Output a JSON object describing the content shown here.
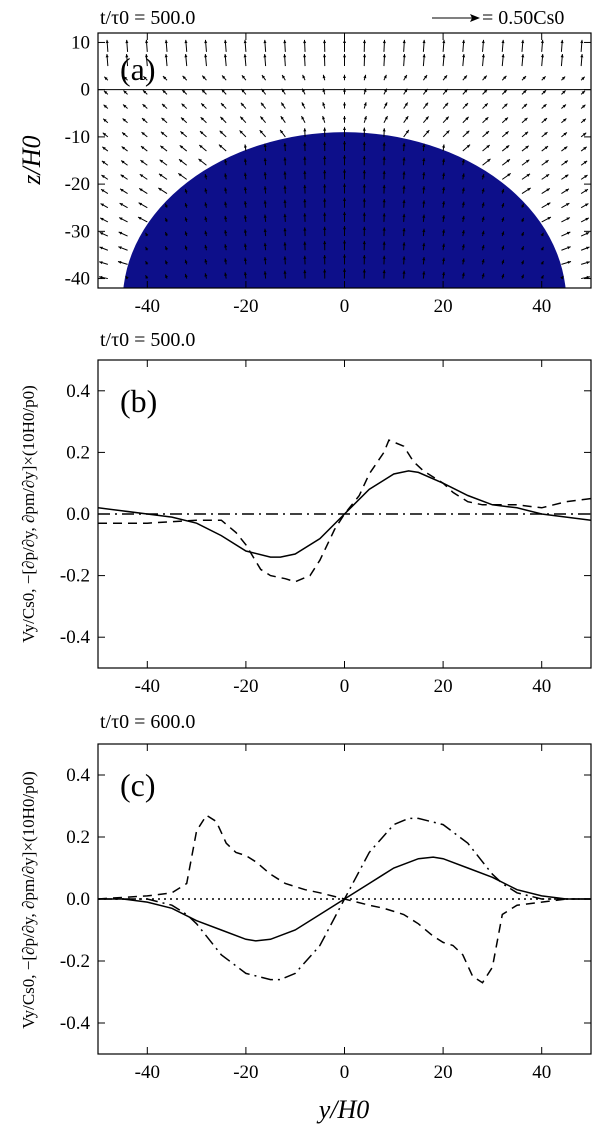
{
  "figure": {
    "xaxis_label": "y/H0"
  },
  "chart_data": [
    {
      "id": "a",
      "type": "heatmap",
      "panel_label": "(a)",
      "title": "t/τ0 = 500.0",
      "legend": "= 0.50Cs0",
      "ylabel": "z/H0",
      "xlim": [
        -50,
        50
      ],
      "ylim": [
        -42,
        12
      ],
      "xticks": [
        -40,
        -20,
        0,
        20,
        40
      ],
      "yticks": [
        -40,
        -30,
        -20,
        -10,
        0,
        10
      ],
      "reference_line_z": 0,
      "bubble": {
        "center_y": 0,
        "center_z": -45,
        "radius_y": 45,
        "radius_z": 36
      },
      "colors": {
        "interior": "#f2301c",
        "edge_orange": "#f5a020",
        "band": [
          "#39c14b",
          "#1ea0d8",
          "#2236c8",
          "#0d0f8a"
        ]
      }
    },
    {
      "id": "b",
      "type": "line",
      "panel_label": "(b)",
      "title": "t/τ0 = 500.0",
      "ylabel": "Vy/Cs0, −[∂p/∂y, ∂pm/∂y]×(10H0/p0)",
      "xlim": [
        -50,
        50
      ],
      "ylim": [
        -0.5,
        0.5
      ],
      "xticks": [
        -40,
        -20,
        0,
        20,
        40
      ],
      "yticks": [
        -0.4,
        -0.2,
        0.0,
        0.2,
        0.4
      ],
      "series": [
        {
          "name": "Vy/Cs0",
          "style": "solid",
          "x": [
            -50,
            -45,
            -40,
            -35,
            -30,
            -25,
            -20,
            -15,
            -13,
            -10,
            -5,
            0,
            5,
            10,
            13,
            15,
            20,
            25,
            30,
            35,
            40,
            45,
            50
          ],
          "y": [
            0.02,
            0.01,
            0.0,
            -0.01,
            -0.03,
            -0.07,
            -0.12,
            -0.14,
            -0.14,
            -0.13,
            -0.08,
            0.0,
            0.08,
            0.13,
            0.14,
            0.135,
            0.1,
            0.06,
            0.03,
            0.02,
            0.0,
            -0.01,
            -0.02
          ]
        },
        {
          "name": "-dp/dy",
          "style": "dashed",
          "x": [
            -50,
            -45,
            -40,
            -35,
            -30,
            -27,
            -25,
            -22,
            -20,
            -17,
            -15,
            -12,
            -10,
            -7,
            -5,
            -2,
            0,
            3,
            5,
            8,
            9,
            12,
            14,
            16,
            18,
            20,
            22,
            25,
            28,
            30,
            35,
            40,
            45,
            50
          ],
          "y": [
            -0.03,
            -0.03,
            -0.03,
            -0.025,
            -0.02,
            -0.02,
            -0.02,
            -0.06,
            -0.1,
            -0.18,
            -0.2,
            -0.21,
            -0.22,
            -0.2,
            -0.15,
            -0.05,
            0.0,
            0.06,
            0.13,
            0.2,
            0.24,
            0.22,
            0.17,
            0.14,
            0.12,
            0.1,
            0.07,
            0.04,
            0.03,
            0.03,
            0.03,
            0.02,
            0.04,
            0.05
          ]
        },
        {
          "name": "-dpm/dy",
          "style": "dashdot",
          "x": [
            -50,
            50
          ],
          "y": [
            0.0,
            0.0
          ]
        }
      ]
    },
    {
      "id": "c",
      "type": "line",
      "panel_label": "(c)",
      "title": "t/τ0 = 600.0",
      "ylabel": "Vy/Cs0, −[∂p/∂y, ∂pm/∂y]×(10H0/p0)",
      "xlim": [
        -50,
        50
      ],
      "ylim": [
        -0.5,
        0.5
      ],
      "xticks": [
        -40,
        -20,
        0,
        20,
        40
      ],
      "yticks": [
        -0.4,
        -0.2,
        0.0,
        0.2,
        0.4
      ],
      "series": [
        {
          "name": "Vy/Cs0",
          "style": "solid",
          "x": [
            -50,
            -45,
            -40,
            -35,
            -30,
            -25,
            -20,
            -18,
            -15,
            -10,
            -5,
            0,
            5,
            10,
            15,
            18,
            20,
            25,
            30,
            35,
            40,
            45,
            50
          ],
          "y": [
            0.0,
            0.0,
            -0.01,
            -0.03,
            -0.07,
            -0.1,
            -0.13,
            -0.135,
            -0.13,
            -0.1,
            -0.05,
            0.0,
            0.05,
            0.1,
            0.13,
            0.135,
            0.13,
            0.1,
            0.07,
            0.03,
            0.01,
            0.0,
            0.0
          ]
        },
        {
          "name": "-dp/dy",
          "style": "dashed",
          "x": [
            -50,
            -40,
            -35,
            -32,
            -30,
            -28,
            -26,
            -24,
            -22,
            -20,
            -18,
            -15,
            -12,
            -10,
            -8,
            -5,
            0,
            5,
            8,
            10,
            12,
            15,
            18,
            20,
            22,
            24,
            26,
            28,
            30,
            32,
            35,
            40,
            45,
            50
          ],
          "y": [
            0.0,
            0.01,
            0.02,
            0.05,
            0.22,
            0.27,
            0.25,
            0.18,
            0.15,
            0.14,
            0.12,
            0.08,
            0.05,
            0.04,
            0.03,
            0.02,
            0.0,
            -0.02,
            -0.03,
            -0.04,
            -0.05,
            -0.08,
            -0.12,
            -0.14,
            -0.15,
            -0.18,
            -0.25,
            -0.27,
            -0.22,
            -0.05,
            -0.02,
            -0.01,
            0.0,
            0.0
          ]
        },
        {
          "name": "-dpm/dy",
          "style": "dashdot",
          "x": [
            -50,
            -40,
            -35,
            -32,
            -30,
            -28,
            -25,
            -20,
            -15,
            -13,
            -10,
            -5,
            0,
            5,
            10,
            13,
            15,
            20,
            25,
            28,
            30,
            32,
            35,
            40,
            50
          ],
          "y": [
            0.0,
            0.0,
            -0.02,
            -0.05,
            -0.08,
            -0.12,
            -0.18,
            -0.24,
            -0.26,
            -0.26,
            -0.24,
            -0.15,
            0.0,
            0.15,
            0.24,
            0.26,
            0.26,
            0.24,
            0.18,
            0.12,
            0.08,
            0.05,
            0.02,
            0.0,
            0.0
          ]
        },
        {
          "name": "zero",
          "style": "dotted",
          "x": [
            -50,
            50
          ],
          "y": [
            0.0,
            0.0
          ]
        }
      ]
    }
  ]
}
